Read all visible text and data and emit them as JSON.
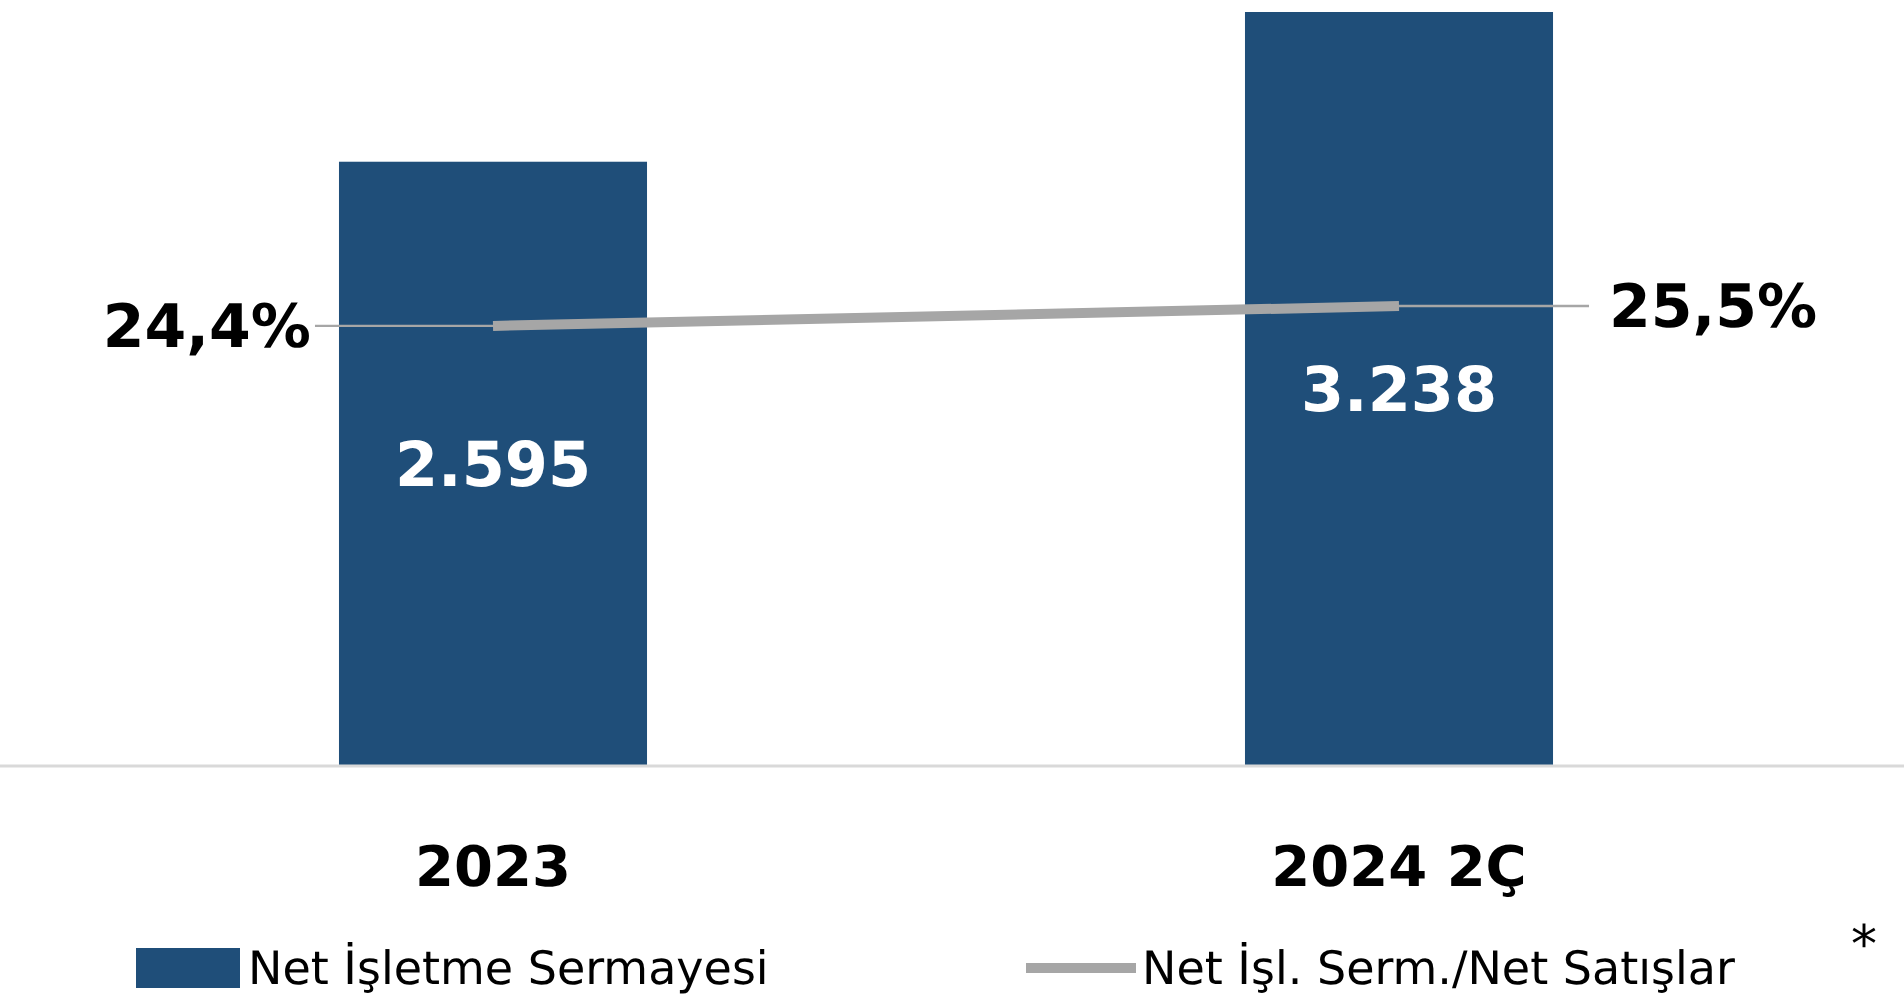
{
  "chart_data": {
    "type": "bar",
    "categories": [
      "2023",
      "2024 2Ç"
    ],
    "series": [
      {
        "name": "Net İşletme Sermayesi",
        "color": "#1f4e79",
        "values": [
          2595,
          3238
        ],
        "value_labels": [
          "2.595",
          "3.238"
        ]
      },
      {
        "name": "Net İşl. Serm./Net Satışlar",
        "type": "line",
        "axis": "y2",
        "color": "#a6a6a6",
        "values": [
          24.4,
          25.5
        ],
        "value_labels": [
          "24,4%",
          "25,5%"
        ]
      }
    ],
    "legend": "bottom",
    "tick_labels": "x",
    "marker": "none",
    "line_style": "solid",
    "annotations": [
      "*"
    ]
  }
}
